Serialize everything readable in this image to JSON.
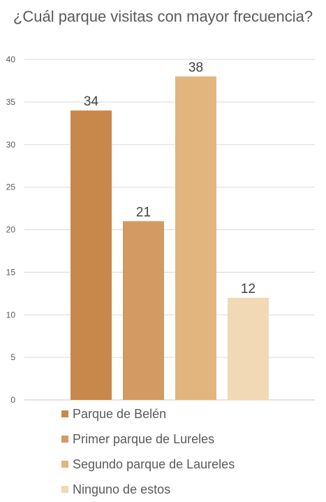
{
  "chart_data": {
    "type": "bar",
    "title": "¿Cuál parque visitas con mayor frecuencia?",
    "xlabel": "",
    "ylabel": "",
    "ylim": [
      0,
      40
    ],
    "yticks": [
      0,
      5,
      10,
      15,
      20,
      25,
      30,
      35,
      40
    ],
    "grid": true,
    "legend_position": "bottom",
    "series": [
      {
        "name": "Parque de Belén",
        "values": [
          34
        ],
        "color": "#C8884C"
      },
      {
        "name": "Primer parque de Lureles",
        "values": [
          21
        ],
        "color": "#D39A63"
      },
      {
        "name": "Segundo parque de Laureles",
        "values": [
          38
        ],
        "color": "#E2B57E"
      },
      {
        "name": "Ninguno de estos",
        "values": [
          12
        ],
        "color": "#F0D9B4"
      }
    ]
  }
}
